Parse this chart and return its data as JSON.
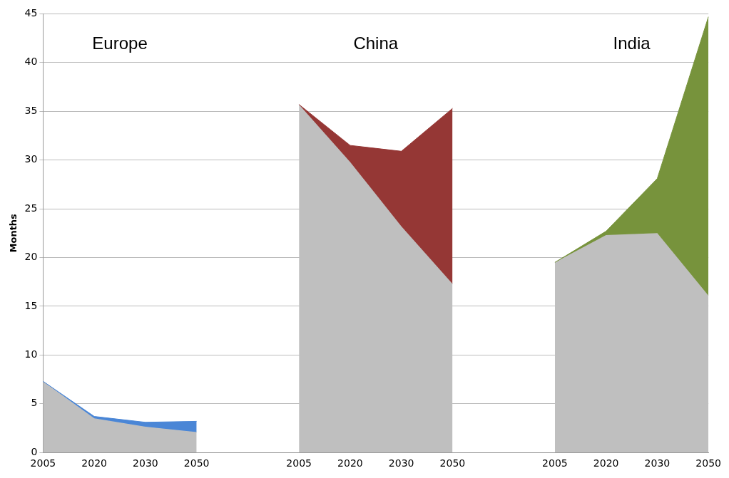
{
  "chart_data": {
    "type": "area",
    "ylabel": "Months",
    "stacked": true,
    "categories": [
      "2005",
      "2020",
      "2030",
      "2050",
      null,
      "2005",
      "2020",
      "2030",
      "2050",
      null,
      "2005",
      "2020",
      "2030",
      "2050"
    ],
    "series": [
      {
        "color": "#bfbfbf",
        "values": [
          7.3,
          3.5,
          2.65,
          2.1,
          null,
          35.7,
          29.8,
          23.2,
          17.3,
          null,
          19.5,
          22.3,
          22.5,
          16.1
        ]
      },
      {
        "color": "#4a86d6",
        "values": [
          0,
          0.2,
          0.45,
          1.1,
          null,
          null,
          null,
          null,
          null,
          null,
          null,
          null,
          null,
          null
        ]
      },
      {
        "color": "#953735",
        "values": [
          null,
          null,
          null,
          null,
          null,
          0,
          1.7,
          7.7,
          18.0,
          null,
          null,
          null,
          null,
          null
        ]
      },
      {
        "color": "#77933c",
        "values": [
          null,
          null,
          null,
          null,
          null,
          null,
          null,
          null,
          null,
          null,
          0,
          0.4,
          5.6,
          28.6
        ]
      }
    ],
    "ylim": [
      0,
      45
    ],
    "yticks": [
      0,
      5,
      10,
      15,
      20,
      25,
      30,
      35,
      40,
      45
    ],
    "grid": "y",
    "legend": false,
    "annotations": [
      "Europe",
      "China",
      "India"
    ]
  }
}
